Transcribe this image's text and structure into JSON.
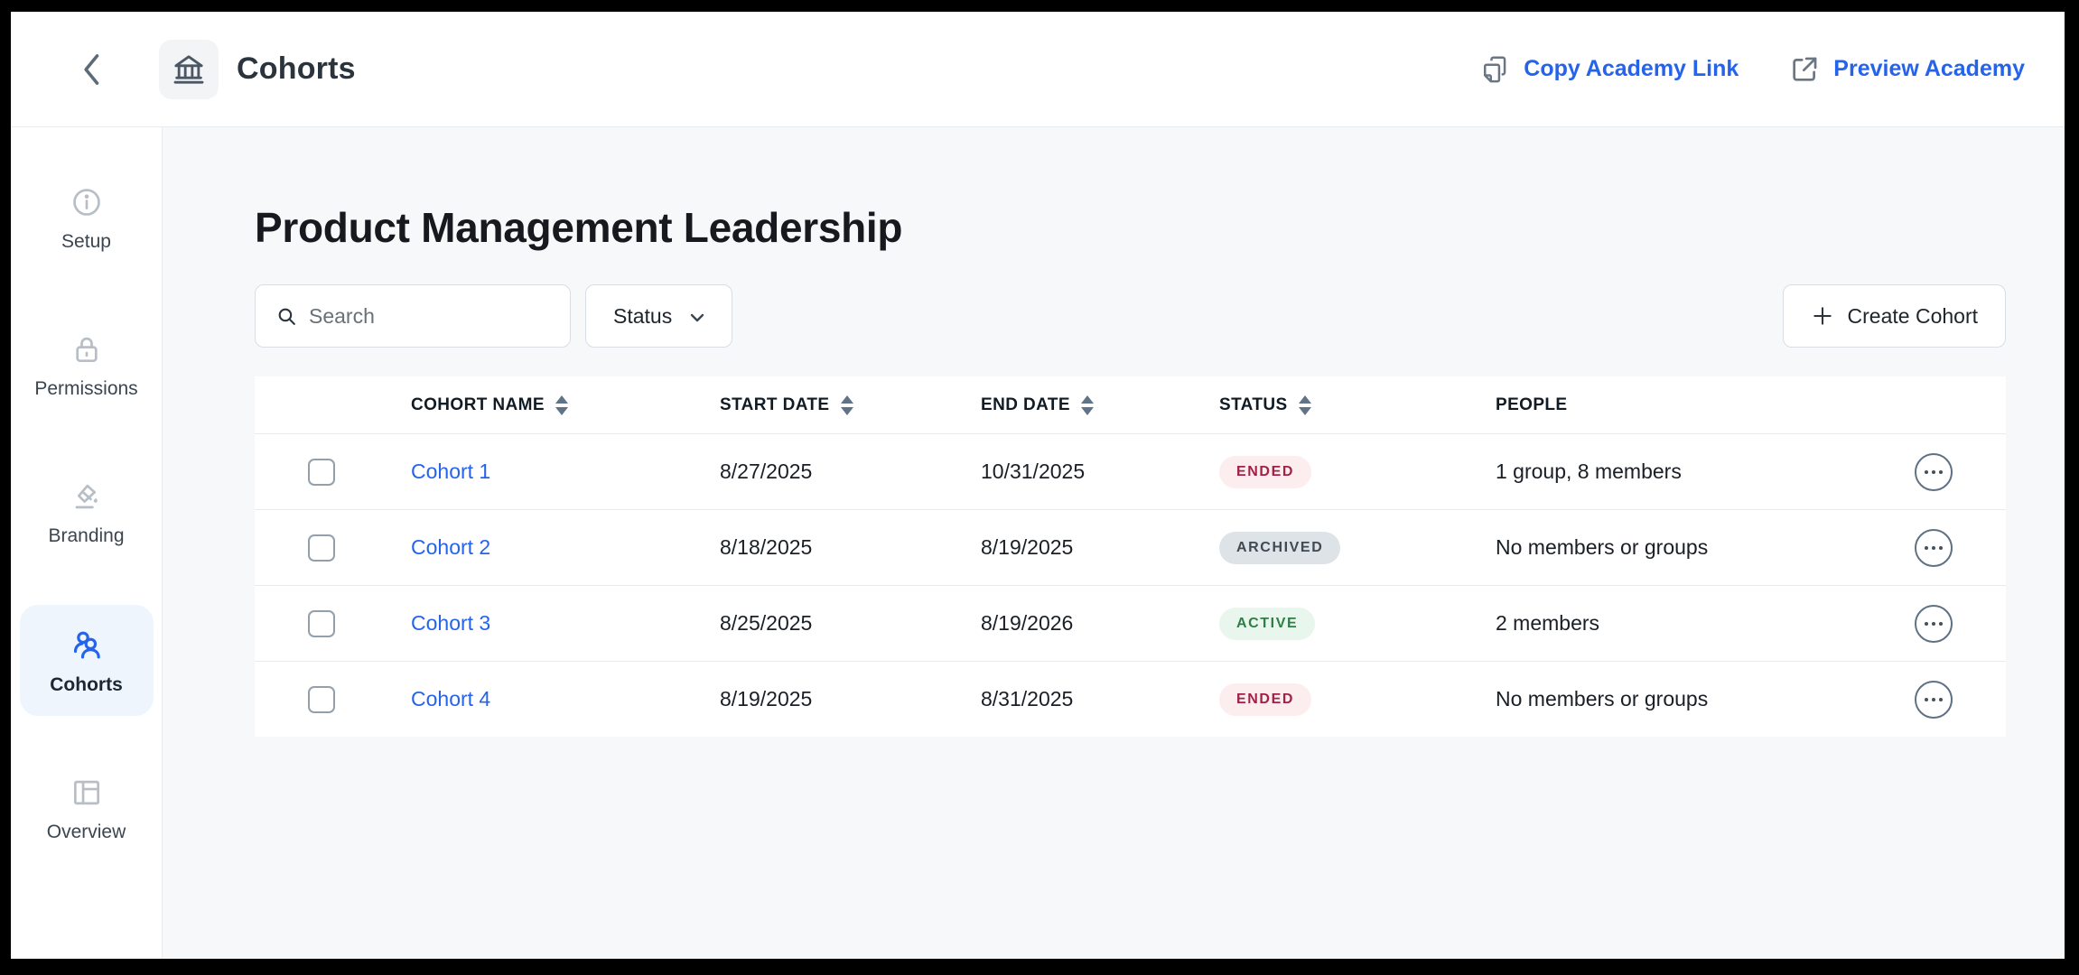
{
  "header": {
    "title": "Cohorts",
    "copy_link_label": "Copy Academy Link",
    "preview_label": "Preview Academy"
  },
  "sidebar": {
    "items": [
      {
        "id": "setup",
        "label": "Setup",
        "icon": "info-icon",
        "active": false
      },
      {
        "id": "permissions",
        "label": "Permissions",
        "icon": "lock-icon",
        "active": false
      },
      {
        "id": "branding",
        "label": "Branding",
        "icon": "paint-bucket-icon",
        "active": false
      },
      {
        "id": "cohorts",
        "label": "Cohorts",
        "icon": "people-icon",
        "active": true
      },
      {
        "id": "overview",
        "label": "Overview",
        "icon": "layout-icon",
        "active": false
      }
    ]
  },
  "page": {
    "title": "Product Management Leadership"
  },
  "controls": {
    "search_placeholder": "Search",
    "search_value": "",
    "status_label": "Status",
    "create_label": "Create Cohort"
  },
  "table": {
    "columns": [
      {
        "key": "name",
        "label": "COHORT NAME",
        "sortable": true
      },
      {
        "key": "start",
        "label": "START DATE",
        "sortable": true
      },
      {
        "key": "end",
        "label": "END DATE",
        "sortable": true
      },
      {
        "key": "status",
        "label": "STATUS",
        "sortable": true
      },
      {
        "key": "people",
        "label": "PEOPLE",
        "sortable": false
      }
    ],
    "rows": [
      {
        "name": "Cohort 1",
        "start": "8/27/2025",
        "end": "10/31/2025",
        "status": "ENDED",
        "status_key": "ended",
        "people": "1 group, 8 members",
        "checked": false
      },
      {
        "name": "Cohort 2",
        "start": "8/18/2025",
        "end": "8/19/2025",
        "status": "ARCHIVED",
        "status_key": "archived",
        "people": "No members or groups",
        "checked": false
      },
      {
        "name": "Cohort 3",
        "start": "8/25/2025",
        "end": "8/19/2026",
        "status": "ACTIVE",
        "status_key": "active",
        "people": "2 members",
        "checked": false
      },
      {
        "name": "Cohort 4",
        "start": "8/19/2025",
        "end": "8/31/2025",
        "status": "ENDED",
        "status_key": "ended",
        "people": "No members or groups",
        "checked": false
      }
    ]
  },
  "colors": {
    "link_blue": "#2563eb",
    "sidebar_active_bg": "#eef5fc",
    "badges": {
      "ended": {
        "bg": "#fcedee",
        "text": "#a32147"
      },
      "archived": {
        "bg": "#dee3e7",
        "text": "#3f4a55"
      },
      "active": {
        "bg": "#e9f6ed",
        "text": "#2f7e45"
      }
    }
  }
}
